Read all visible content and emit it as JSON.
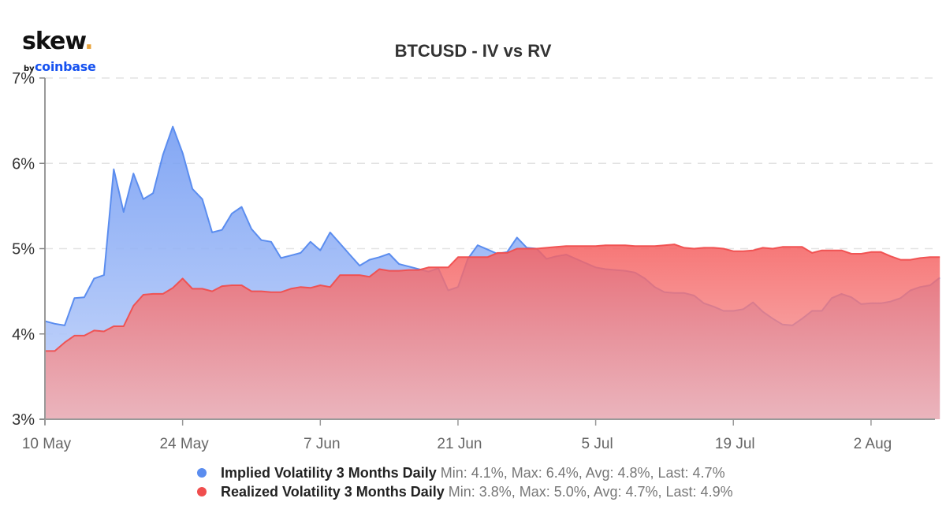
{
  "logo": {
    "brand": "skew",
    "dot": ".",
    "by": "by",
    "parent": "coinbase"
  },
  "chart_data": {
    "type": "area",
    "title": "BTCUSD - IV vs RV",
    "xlabel": "",
    "ylabel": "",
    "ylim": [
      3,
      7
    ],
    "y_ticks": [
      "3%",
      "4%",
      "5%",
      "6%",
      "7%"
    ],
    "y_tick_values": [
      3,
      4,
      5,
      6,
      7
    ],
    "x_ticks": [
      "10 May",
      "24 May",
      "7 Jun",
      "21 Jun",
      "5 Jul",
      "19 Jul",
      "2 Aug"
    ],
    "x_tick_days": [
      0,
      14,
      28,
      42,
      56,
      70,
      84
    ],
    "x_range_days": [
      0,
      90.5
    ],
    "grid": "horizontal-dashed",
    "legend_position": "bottom",
    "series": [
      {
        "name": "Implied Volatility 3 Months Daily",
        "stats": "Min: 4.1%, Max: 6.4%, Avg: 4.8%, Last: 4.7%",
        "color": "#5b8def",
        "values": [
          4.15,
          4.12,
          4.1,
          4.42,
          4.43,
          4.65,
          4.69,
          5.93,
          5.43,
          5.88,
          5.58,
          5.65,
          6.1,
          6.43,
          6.12,
          5.7,
          5.58,
          5.19,
          5.22,
          5.41,
          5.49,
          5.23,
          5.1,
          5.08,
          4.89,
          4.92,
          4.95,
          5.08,
          4.98,
          5.19,
          5.06,
          4.93,
          4.8,
          4.87,
          4.9,
          4.94,
          4.82,
          4.79,
          4.76,
          4.73,
          4.77,
          4.51,
          4.55,
          4.88,
          5.04,
          4.99,
          4.94,
          4.96,
          5.13,
          5.01,
          5.0,
          4.88,
          4.91,
          4.93,
          4.88,
          4.83,
          4.78,
          4.76,
          4.75,
          4.74,
          4.72,
          4.65,
          4.55,
          4.49,
          4.48,
          4.48,
          4.45,
          4.36,
          4.32,
          4.27,
          4.27,
          4.29,
          4.37,
          4.26,
          4.18,
          4.11,
          4.1,
          4.18,
          4.27,
          4.27,
          4.42,
          4.47,
          4.43,
          4.35,
          4.36,
          4.36,
          4.38,
          4.42,
          4.51,
          4.55,
          4.57,
          4.66
        ]
      },
      {
        "name": "Realized Volatility 3 Months Daily",
        "stats": "Min: 3.8%, Max: 5.0%, Avg: 4.7%, Last: 4.9%",
        "color": "#f04e4e",
        "values": [
          3.8,
          3.8,
          3.9,
          3.98,
          3.98,
          4.04,
          4.03,
          4.09,
          4.09,
          4.33,
          4.46,
          4.47,
          4.47,
          4.54,
          4.65,
          4.53,
          4.53,
          4.5,
          4.56,
          4.57,
          4.57,
          4.5,
          4.5,
          4.49,
          4.49,
          4.53,
          4.55,
          4.54,
          4.57,
          4.55,
          4.69,
          4.69,
          4.69,
          4.67,
          4.76,
          4.74,
          4.74,
          4.75,
          4.75,
          4.78,
          4.78,
          4.78,
          4.9,
          4.9,
          4.9,
          4.9,
          4.95,
          4.95,
          5.0,
          5.0,
          5.0,
          5.01,
          5.02,
          5.03,
          5.03,
          5.03,
          5.03,
          5.04,
          5.04,
          5.04,
          5.03,
          5.03,
          5.03,
          5.04,
          5.05,
          5.01,
          5.0,
          5.01,
          5.01,
          5.0,
          4.97,
          4.97,
          4.98,
          5.01,
          5.0,
          5.02,
          5.02,
          5.02,
          4.95,
          4.98,
          4.98,
          4.98,
          4.94,
          4.94,
          4.96,
          4.96,
          4.91,
          4.87,
          4.87,
          4.89,
          4.9,
          4.9
        ]
      }
    ]
  }
}
